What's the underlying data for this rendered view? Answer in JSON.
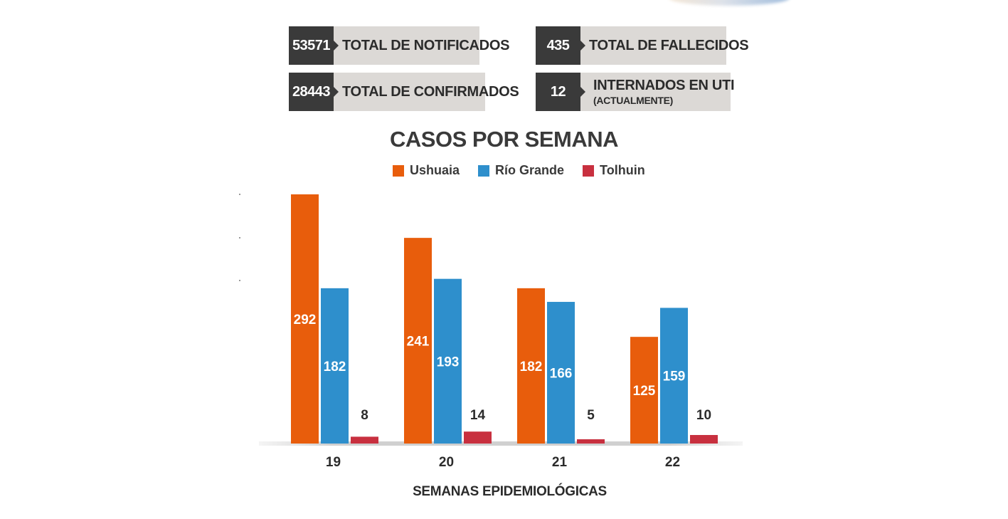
{
  "stats": [
    {
      "value": "53571",
      "label": "TOTAL DE NOTIFICADOS"
    },
    {
      "value": "435",
      "label": "TOTAL DE FALLECIDOS"
    },
    {
      "value": "28443",
      "label": "TOTAL DE CONFIRMADOS"
    },
    {
      "value": "12",
      "label": "INTERNADOS EN UTI",
      "sublabel": "(ACTUALMENTE)"
    }
  ],
  "chart_data": {
    "type": "bar",
    "title": "CASOS POR SEMANA",
    "xlabel": "SEMANAS EPIDEMIOLÓGICAS",
    "ylabel": "",
    "categories": [
      "19",
      "20",
      "21",
      "22"
    ],
    "series": [
      {
        "name": "Ushuaia",
        "color": "#e85d0c",
        "values": [
          292,
          241,
          182,
          125
        ]
      },
      {
        "name": "Río Grande",
        "color": "#2e8fcc",
        "values": [
          182,
          193,
          166,
          159
        ]
      },
      {
        "name": "Tolhuin",
        "color": "#c8303f",
        "values": [
          8,
          14,
          5,
          10
        ]
      }
    ],
    "ylim": [
      0,
      292
    ],
    "legend_position": "top-center",
    "grid": false
  }
}
